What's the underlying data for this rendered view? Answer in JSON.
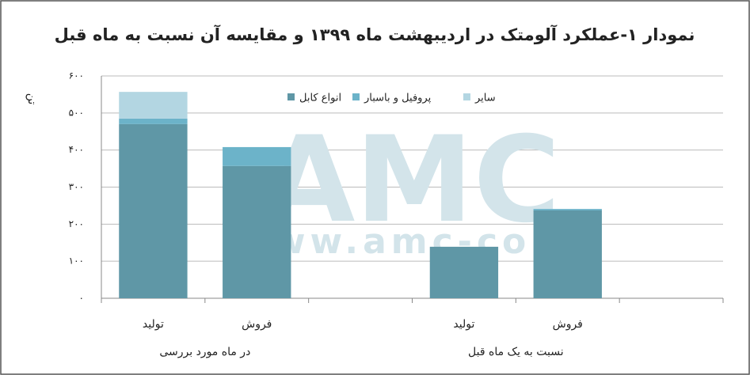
{
  "chart_data": {
    "type": "stacked_bar",
    "title": "نمودار ۱-عملکرد آلومتک در اردیبهشت ماه ۱۳۹۹ و مقایسه آن نسبت به ماه قبل",
    "y_label": "تن",
    "watermark": [
      "AMC",
      "www.amc-co.ir"
    ],
    "categories": [
      "تولید",
      "فروش",
      null,
      "تولید",
      "فروش",
      null
    ],
    "groups": [
      "در ماه مورد بررسی",
      "نسبت به یک ماه قبل"
    ],
    "series": [
      {
        "name": "انواع کابل",
        "color": "#5f97a6",
        "values": [
          470,
          357,
          null,
          139,
          237,
          null
        ]
      },
      {
        "name": "پروفیل و باسبار",
        "color": "#6cb3c9",
        "values": [
          15,
          51,
          null,
          0,
          4,
          null
        ]
      },
      {
        "name": "سایر",
        "color": "#b3d6e2",
        "values": [
          72,
          0,
          null,
          0,
          0,
          null
        ]
      }
    ],
    "ylim": [
      0,
      600
    ],
    "yticks": [
      {
        "value": 0,
        "label": "۰"
      },
      {
        "value": 100,
        "label": "۱۰۰"
      },
      {
        "value": 200,
        "label": "۲۰۰"
      },
      {
        "value": 300,
        "label": "۳۰۰"
      },
      {
        "value": 400,
        "label": "۴۰۰"
      },
      {
        "value": 500,
        "label": "۵۰۰"
      },
      {
        "value": 600,
        "label": "۶۰۰"
      }
    ],
    "grid": true,
    "legend": "top"
  }
}
